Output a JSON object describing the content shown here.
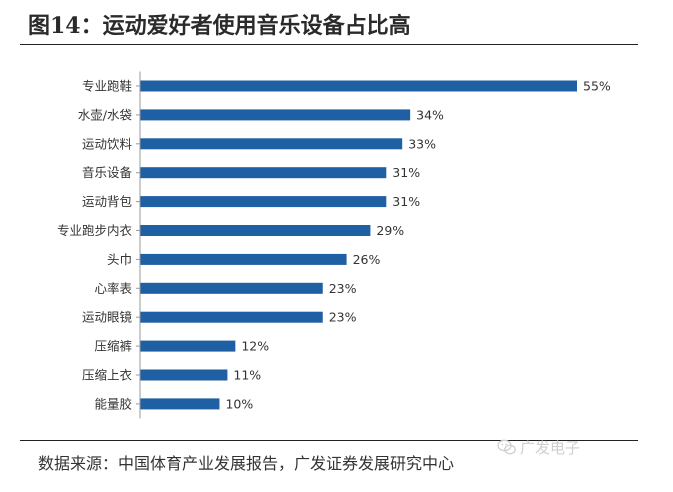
{
  "title": "图14：运动爱好者使用音乐设备占比高",
  "source": "数据来源：中国体育产业发展报告，广发证券发展研究中心",
  "watermark": {
    "text": "广发电子",
    "icon": "wechat-icon"
  },
  "colors": {
    "bar": "#1f5fa3",
    "axis": "#9a9a9a",
    "text": "#333333"
  },
  "chart_data": {
    "type": "bar",
    "orientation": "horizontal",
    "categories": [
      "专业跑鞋",
      "水壶/水袋",
      "运动饮料",
      "音乐设备",
      "运动背包",
      "专业跑步内衣",
      "头巾",
      "心率表",
      "运动眼镜",
      "压缩裤",
      "压缩上衣",
      "能量胶"
    ],
    "values": [
      55,
      34,
      33,
      31,
      31,
      29,
      26,
      23,
      23,
      12,
      11,
      10
    ],
    "value_labels": [
      "55%",
      "34%",
      "33%",
      "31%",
      "31%",
      "29%",
      "26%",
      "23%",
      "23%",
      "12%",
      "11%",
      "10%"
    ],
    "unit": "%",
    "xlim": [
      0,
      55
    ],
    "grid": false,
    "legend": "none"
  }
}
